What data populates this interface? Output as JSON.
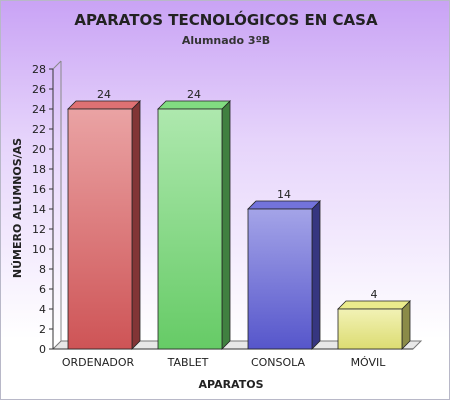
{
  "chart_data": {
    "type": "bar",
    "title": "APARATOS TECNOLÓGICOS EN CASA",
    "subtitle": "Alumnado 3ºB",
    "xlabel": "APARATOS",
    "ylabel": "NÚMERO ALUMNOS/AS",
    "categories": [
      "ORDENADOR",
      "TABLET",
      "CONSOLA",
      "MÓVIL"
    ],
    "values": [
      24,
      24,
      14,
      4
    ],
    "colors": [
      "#d9585a",
      "#6bd66b",
      "#5a5ad6",
      "#e8e878"
    ],
    "ylim": [
      0,
      28
    ],
    "ytick_step": 2,
    "grid": false,
    "legend": "none",
    "bar_style": "3d"
  }
}
